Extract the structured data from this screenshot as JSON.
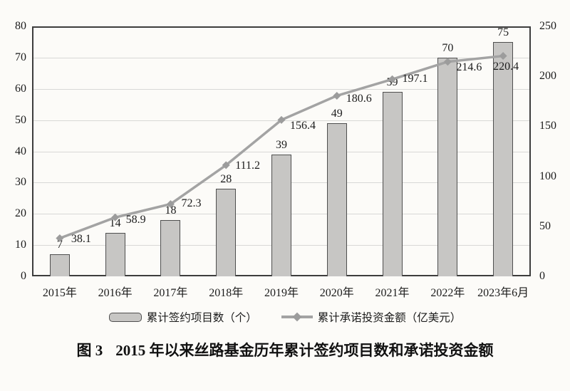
{
  "chart_data": {
    "type": "bar",
    "subtype": "bar+line combo",
    "categories": [
      "2015年",
      "2016年",
      "2017年",
      "2018年",
      "2019年",
      "2020年",
      "2021年",
      "2022年",
      "2023年6月"
    ],
    "series": [
      {
        "name": "累计签约项目数（个）",
        "type": "bar",
        "axis": "left",
        "values": [
          7,
          14,
          18,
          28,
          39,
          49,
          59,
          70,
          75
        ]
      },
      {
        "name": "累计承诺投资金额（亿美元）",
        "type": "line",
        "axis": "right",
        "values": [
          38.1,
          58.9,
          72.3,
          111.2,
          156.4,
          180.6,
          197.1,
          214.6,
          220.4
        ]
      }
    ],
    "left_axis": {
      "min": 0,
      "max": 80,
      "step": 10,
      "ticks": [
        0,
        10,
        20,
        30,
        40,
        50,
        60,
        70,
        80
      ]
    },
    "right_axis": {
      "min": 0,
      "max": 250,
      "step": 50,
      "ticks": [
        0,
        50,
        100,
        150,
        200,
        250
      ]
    },
    "grid": "horizontal gridlines every 10 left-axis units",
    "legend_position": "bottom",
    "title": "图 3 2015 年以来丝路基金历年累计签约项目数和承诺投资金额"
  },
  "legend": {
    "bar_label": "累计签约项目数（个）",
    "line_label": "累计承诺投资金额（亿美元）"
  },
  "caption": {
    "figure_label": "图 3",
    "title": "2015 年以来丝路基金历年累计签约项目数和承诺投资金额"
  },
  "colors": {
    "bar_fill": "#c7c6c4",
    "bar_border": "#4f4f4f",
    "line": "#a3a3a3",
    "marker": "#9c9c9c",
    "grid": "#d8d8d6",
    "plot_border": "#3d3d3d",
    "text": "#1c1c1c",
    "background": "#fcfbf8"
  }
}
